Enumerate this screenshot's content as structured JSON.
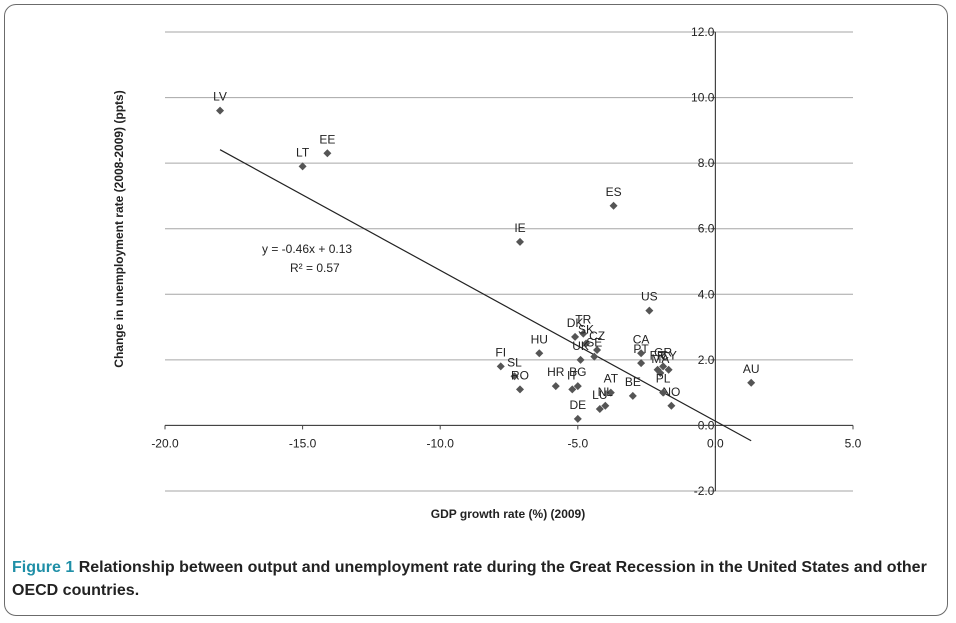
{
  "caption": {
    "label": "Figure 1",
    "text": "Relationship between output and unemployment rate during the Great Recession in the United States and other OECD countries."
  },
  "colors": {
    "caption_label": "#1f8fa7",
    "marker": "#555555",
    "grid": "#a6a6a6"
  },
  "chart_data": {
    "type": "scatter",
    "xlabel": "GDP growth rate (%) (2009)",
    "ylabel": "Change in unemployment rate (2008-2009) (ppts)",
    "xlim": [
      -20,
      5
    ],
    "ylim": [
      -2,
      12
    ],
    "x_ticks": [
      "-20.0",
      "-15.0",
      "-10.0",
      "-5.0",
      "0.0",
      "5.0"
    ],
    "y_ticks": [
      "-2.0",
      "0.0",
      "2.0",
      "4.0",
      "6.0",
      "8.0",
      "10.0",
      "12.0"
    ],
    "grid": "horizontal",
    "points": [
      {
        "label": "LV",
        "x": -18.0,
        "y": 9.6
      },
      {
        "label": "LT",
        "x": -15.0,
        "y": 7.9
      },
      {
        "label": "EE",
        "x": -14.1,
        "y": 8.3
      },
      {
        "label": "ES",
        "x": -3.7,
        "y": 6.7
      },
      {
        "label": "IE",
        "x": -7.1,
        "y": 5.6
      },
      {
        "label": "US",
        "x": -2.4,
        "y": 3.5
      },
      {
        "label": "TR",
        "x": -4.8,
        "y": 2.8
      },
      {
        "label": "DK",
        "x": -5.1,
        "y": 2.7
      },
      {
        "label": "SK",
        "x": -4.7,
        "y": 2.5
      },
      {
        "label": "CZ",
        "x": -4.3,
        "y": 2.3
      },
      {
        "label": "SE",
        "x": -4.4,
        "y": 2.1
      },
      {
        "label": "UK",
        "x": -4.9,
        "y": 2.0
      },
      {
        "label": "HU",
        "x": -6.4,
        "y": 2.2
      },
      {
        "label": "CA",
        "x": -2.7,
        "y": 2.2
      },
      {
        "label": "PT",
        "x": -2.7,
        "y": 1.9
      },
      {
        "label": "FR",
        "x": -2.1,
        "y": 1.7
      },
      {
        "label": "GR",
        "x": -1.9,
        "y": 1.8
      },
      {
        "label": "CY",
        "x": -1.7,
        "y": 1.7
      },
      {
        "label": "MA",
        "x": -2.0,
        "y": 1.6
      },
      {
        "label": "FI",
        "x": -7.8,
        "y": 1.8
      },
      {
        "label": "SL",
        "x": -7.3,
        "y": 1.5
      },
      {
        "label": "RO",
        "x": -7.1,
        "y": 1.1
      },
      {
        "label": "HR",
        "x": -5.8,
        "y": 1.2
      },
      {
        "label": "BG",
        "x": -5.0,
        "y": 1.2
      },
      {
        "label": "IT",
        "x": -5.2,
        "y": 1.1
      },
      {
        "label": "AT",
        "x": -3.8,
        "y": 1.0
      },
      {
        "label": "BE",
        "x": -3.0,
        "y": 0.9
      },
      {
        "label": "NL",
        "x": -4.0,
        "y": 0.6
      },
      {
        "label": "LU",
        "x": -4.2,
        "y": 0.5
      },
      {
        "label": "NO",
        "x": -1.6,
        "y": 0.6
      },
      {
        "label": "PL",
        "x": -1.9,
        "y": 1.0
      },
      {
        "label": "DE",
        "x": -5.0,
        "y": 0.2
      },
      {
        "label": "AU",
        "x": 1.3,
        "y": 1.3
      }
    ],
    "trendline": {
      "x_range": [
        -18,
        1.3
      ],
      "equation": "y = -0.46x + 0.13",
      "r2": "R² = 0.57"
    }
  }
}
